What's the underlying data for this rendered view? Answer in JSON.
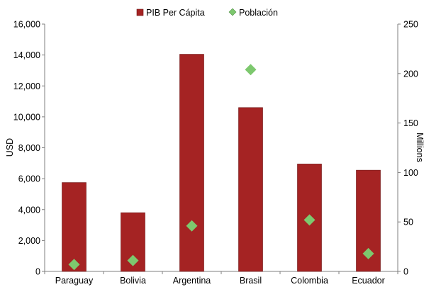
{
  "chart_data": {
    "type": "bar",
    "categories": [
      "Paraguay",
      "Bolivia",
      "Argentina",
      "Brasil",
      "Colombia",
      "Ecuador"
    ],
    "series": [
      {
        "name": "PIB Per Cápita",
        "kind": "bar",
        "axis": "left",
        "color": "#a52323",
        "values": [
          5750,
          3800,
          14050,
          10600,
          6950,
          6550
        ]
      },
      {
        "name": "Población",
        "kind": "marker",
        "marker": "diamond",
        "axis": "right",
        "color": "#7dc86e",
        "values": [
          7,
          11,
          46,
          204,
          52,
          18
        ]
      }
    ],
    "ylabel": "USD",
    "ylabel_right": "Millions",
    "ylim": [
      0,
      16000
    ],
    "ylim_right": [
      0,
      250
    ],
    "yticks": [
      "0",
      "2,000",
      "4,000",
      "6,000",
      "8,000",
      "10,000",
      "12,000",
      "14,000",
      "16,000"
    ],
    "yticks_right": [
      "0",
      "50",
      "100",
      "150",
      "200",
      "250"
    ],
    "legend": [
      "PIB Per Cápita",
      "Población"
    ],
    "legend_position": "top-center",
    "grid": false
  }
}
